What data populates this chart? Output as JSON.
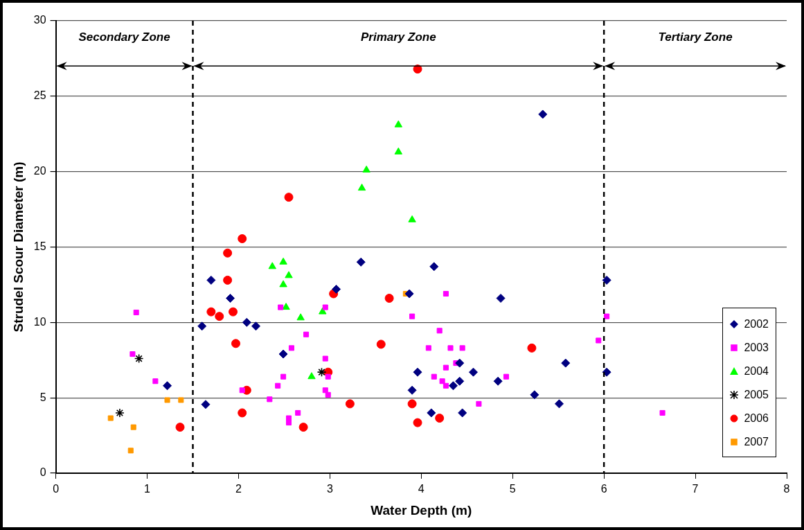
{
  "chart_data": {
    "type": "scatter",
    "xlabel": "Water Depth (m)",
    "ylabel": "Strudel Scour Diameter (m)",
    "xlim": [
      0,
      8
    ],
    "xticks": [
      0,
      1,
      2,
      3,
      4,
      5,
      6,
      7,
      8
    ],
    "ylim": [
      0,
      30
    ],
    "yticks": [
      0,
      5,
      10,
      15,
      20,
      25,
      30
    ],
    "grid": "y",
    "legend": "right",
    "ref_lines": [
      {
        "axis": "x",
        "value": 1.5,
        "line_style": "dashed",
        "color": "#000000"
      },
      {
        "axis": "x",
        "value": 6,
        "line_style": "dashed",
        "color": "#000000"
      }
    ],
    "annotations": [
      "Secondary Zone",
      "Primary Zone",
      "Tertiary Zone"
    ],
    "series": [
      {
        "name": "2002",
        "color": "#000080",
        "marker": "diamond",
        "x": [
          1.22,
          1.6,
          1.64,
          1.7,
          1.91,
          2.09,
          2.19,
          2.49,
          3.07,
          3.34,
          3.87,
          3.9,
          3.96,
          4.11,
          4.14,
          4.35,
          4.42,
          4.42,
          4.45,
          4.57,
          4.84,
          4.87,
          5.24,
          5.33,
          5.51,
          5.58,
          6.03,
          6.03
        ],
        "values": [
          5.8,
          9.75,
          4.56,
          12.8,
          11.6,
          10.0,
          9.75,
          7.9,
          12.2,
          14.0,
          11.9,
          5.5,
          6.7,
          4.0,
          13.7,
          5.8,
          7.3,
          6.1,
          4.0,
          6.7,
          6.1,
          11.6,
          5.2,
          23.8,
          4.6,
          7.3,
          12.8,
          6.7
        ]
      },
      {
        "name": "2003",
        "color": "#ff00ff",
        "marker": "square",
        "x": [
          0.88,
          0.84,
          1.09,
          2.04,
          2.34,
          2.43,
          2.46,
          2.49,
          2.55,
          2.55,
          2.58,
          2.65,
          2.74,
          2.95,
          2.95,
          2.95,
          2.98,
          2.98,
          3.9,
          4.08,
          4.14,
          4.2,
          4.23,
          4.27,
          4.27,
          4.27,
          4.32,
          4.38,
          4.45,
          4.63,
          4.93,
          5.94,
          6.03,
          6.64
        ],
        "values": [
          10.66,
          7.9,
          6.1,
          5.5,
          4.9,
          5.8,
          11.0,
          6.4,
          3.65,
          3.35,
          8.3,
          4.0,
          9.2,
          11.0,
          7.6,
          5.5,
          6.4,
          5.2,
          10.4,
          8.3,
          6.4,
          9.45,
          6.1,
          5.8,
          7.0,
          11.9,
          8.3,
          7.3,
          8.3,
          4.6,
          6.4,
          8.8,
          10.4,
          4.0
        ]
      },
      {
        "name": "2004",
        "color": "#00ff00",
        "marker": "triangle",
        "x": [
          2.37,
          2.49,
          2.49,
          2.52,
          2.55,
          2.68,
          2.8,
          2.92,
          3.35,
          3.4,
          3.75,
          3.75,
          3.9
        ],
        "values": [
          13.7,
          14.0,
          12.5,
          11.0,
          13.1,
          10.3,
          6.4,
          10.7,
          18.9,
          20.1,
          23.1,
          21.3,
          16.8
        ]
      },
      {
        "name": "2005",
        "color": "#000000",
        "marker": "cross",
        "x": [
          0.7,
          0.91,
          2.91
        ],
        "values": [
          4.0,
          7.6,
          6.7
        ]
      },
      {
        "name": "2006",
        "color": "#ff0000",
        "marker": "circle",
        "x": [
          1.36,
          1.7,
          1.79,
          1.88,
          1.88,
          1.94,
          1.97,
          2.04,
          2.04,
          2.09,
          2.55,
          2.71,
          2.98,
          3.04,
          3.22,
          3.56,
          3.65,
          3.9,
          3.96,
          3.96,
          4.2,
          5.21
        ],
        "values": [
          3.05,
          10.7,
          10.4,
          12.8,
          14.6,
          10.7,
          8.6,
          15.55,
          4.0,
          5.5,
          18.3,
          3.05,
          6.7,
          11.9,
          4.6,
          8.55,
          11.6,
          4.6,
          26.8,
          3.35,
          3.65,
          8.3
        ]
      },
      {
        "name": "2007",
        "color": "#ff9900",
        "marker": "square",
        "x": [
          0.6,
          0.82,
          0.85,
          1.22,
          1.37,
          3.83
        ],
        "values": [
          3.65,
          1.5,
          3.05,
          4.85,
          4.85,
          11.9
        ]
      }
    ]
  }
}
